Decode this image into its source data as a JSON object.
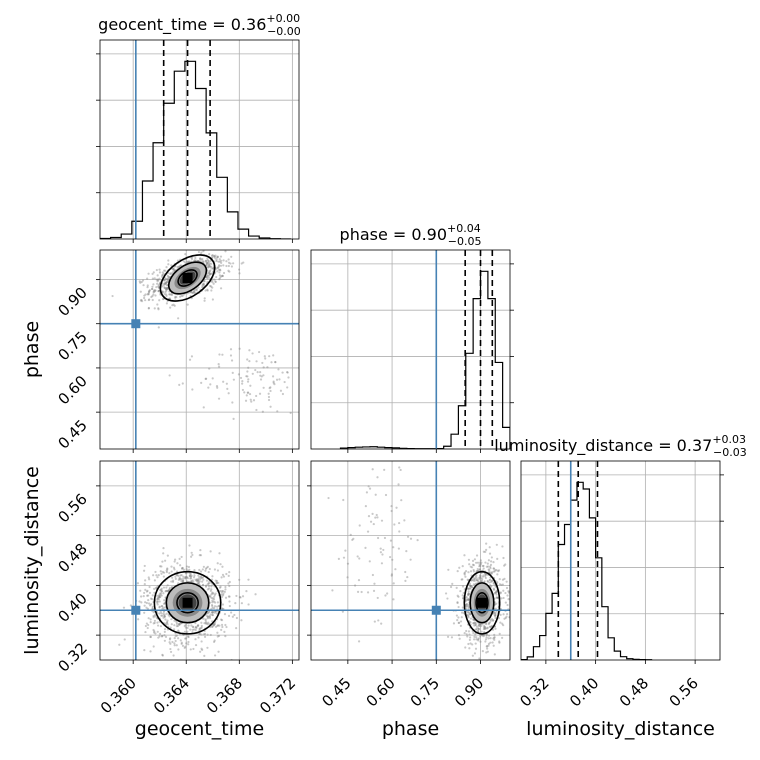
{
  "chart_data": {
    "type": "corner",
    "parameters": [
      {
        "name": "geocent_time",
        "label": "geocent_time",
        "truth": 0.3602,
        "range": [
          0.3575,
          0.3725
        ],
        "ticks": [
          0.36,
          0.364,
          0.368,
          0.372
        ],
        "tick_labels": [
          "0.360",
          "0.364",
          "0.368",
          "0.372"
        ],
        "quantiles": [
          0.3623,
          0.3641,
          0.3658
        ],
        "title_prefix": "geocent_time = 0.36",
        "title_plus": "+0.00",
        "title_minus": "−0.00",
        "hist_bins": [
          0.3575,
          0.3583,
          0.3591,
          0.3599,
          0.3607,
          0.3615,
          0.3623,
          0.3631,
          0.3639,
          0.3647,
          0.3655,
          0.3663,
          0.3671,
          0.3679,
          0.3687,
          0.3695,
          0.3703,
          0.3711,
          0.3719
        ],
        "hist_values": [
          2,
          6,
          20,
          72,
          235,
          390,
          550,
          680,
          720,
          610,
          430,
          250,
          110,
          40,
          12,
          4,
          1,
          0
        ]
      },
      {
        "name": "phase",
        "label": "phase",
        "truth": 0.75,
        "range": [
          0.325,
          1.0
        ],
        "ticks": [
          0.45,
          0.6,
          0.75,
          0.9
        ],
        "tick_labels": [
          "0.45",
          "0.60",
          "0.75",
          "0.90"
        ],
        "quantiles": [
          0.848,
          0.9,
          0.94
        ],
        "title_prefix": "phase = 0.90",
        "title_plus": "+0.04",
        "title_minus": "−0.05",
        "hist_bins": [
          0.425,
          0.45,
          0.475,
          0.5,
          0.525,
          0.55,
          0.575,
          0.6,
          0.625,
          0.65,
          0.675,
          0.7,
          0.725,
          0.75,
          0.775,
          0.8,
          0.825,
          0.85,
          0.875,
          0.9,
          0.925,
          0.95,
          0.975,
          1.0
        ],
        "hist_values": [
          4,
          6,
          8,
          9,
          10,
          8,
          6,
          5,
          3,
          2,
          1,
          1,
          1,
          2,
          12,
          65,
          190,
          420,
          660,
          780,
          660,
          380,
          95
        ]
      },
      {
        "name": "luminosity_distance",
        "label": "luminosity_distance",
        "truth": 0.36,
        "range": [
          0.28,
          0.6
        ],
        "ticks": [
          0.32,
          0.4,
          0.48,
          0.56
        ],
        "tick_labels": [
          "0.32",
          "0.40",
          "0.48",
          "0.56"
        ],
        "quantiles": [
          0.34,
          0.372,
          0.403
        ],
        "title_prefix": "luminosity_distance = 0.37",
        "title_plus": "+0.03",
        "title_minus": "−0.03",
        "hist_bins": [
          0.28,
          0.29,
          0.3,
          0.31,
          0.32,
          0.33,
          0.34,
          0.35,
          0.36,
          0.37,
          0.38,
          0.39,
          0.4,
          0.41,
          0.42,
          0.43,
          0.44,
          0.45,
          0.46,
          0.47,
          0.48,
          0.49
        ],
        "hist_values": [
          2,
          14,
          60,
          110,
          210,
          300,
          520,
          610,
          720,
          800,
          770,
          640,
          460,
          240,
          100,
          40,
          15,
          6,
          3,
          2,
          1
        ]
      }
    ],
    "panels_2d": [
      {
        "x_param": "geocent_time",
        "y_param": "phase",
        "centers": [
          {
            "x": 0.3641,
            "y": 0.905,
            "sx": 0.0014,
            "sy": 0.038,
            "rho": 0.5,
            "n": 900
          },
          {
            "x": 0.369,
            "y": 0.56,
            "sx": 0.002,
            "sy": 0.06,
            "rho": 0.0,
            "n": 110
          }
        ],
        "density_peak": {
          "x": 0.3641,
          "y": 0.905
        },
        "contours": [
          {
            "sx": 0.0008,
            "sy": 0.022
          },
          {
            "sx": 0.0016,
            "sy": 0.042
          },
          {
            "sx": 0.0023,
            "sy": 0.062
          }
        ],
        "contour_rho": 0.55
      },
      {
        "x_param": "geocent_time",
        "y_param": "luminosity_distance",
        "centers": [
          {
            "x": 0.3641,
            "y": 0.372,
            "sx": 0.0016,
            "sy": 0.032,
            "rho": 0.0,
            "n": 1100
          }
        ],
        "density_peak": {
          "x": 0.3641,
          "y": 0.372
        },
        "contours": [
          {
            "sx": 0.0008,
            "sy": 0.016
          },
          {
            "sx": 0.0016,
            "sy": 0.032
          },
          {
            "sx": 0.0025,
            "sy": 0.05
          }
        ],
        "contour_rho": 0.0
      },
      {
        "x_param": "phase",
        "y_param": "luminosity_distance",
        "centers": [
          {
            "x": 0.905,
            "y": 0.372,
            "sx": 0.038,
            "sy": 0.032,
            "rho": 0.0,
            "n": 900
          },
          {
            "x": 0.56,
            "y": 0.46,
            "sx": 0.07,
            "sy": 0.07,
            "rho": 0.0,
            "n": 90
          }
        ],
        "density_peak": {
          "x": 0.905,
          "y": 0.372
        },
        "contours": [
          {
            "sx": 0.02,
            "sy": 0.016
          },
          {
            "sx": 0.04,
            "sy": 0.032
          },
          {
            "sx": 0.06,
            "sy": 0.05
          }
        ],
        "contour_rho": 0.0
      }
    ],
    "colors": {
      "truth": "#4682b4",
      "lines": "#000000",
      "grid": "#b0b0b0",
      "scatter": "#888888"
    },
    "grid": true
  }
}
